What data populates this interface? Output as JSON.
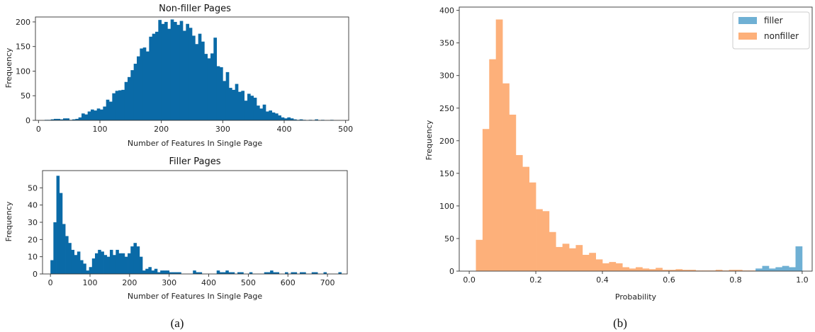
{
  "charts": {
    "a_top": {
      "type": "bar",
      "title": "Non-filler Pages",
      "xlabel": "Number of Features In Single Page",
      "ylabel": "Frequency",
      "xlim": [
        -5,
        505
      ],
      "ylim": [
        0,
        210
      ],
      "xticks": [
        0,
        100,
        200,
        300,
        400,
        500
      ],
      "yticks": [
        0,
        50,
        100,
        150,
        200
      ],
      "bin_start": 10,
      "bin_width": 5,
      "color": "#0a6aa7",
      "values": [
        1,
        1,
        2,
        3,
        3,
        2,
        4,
        4,
        1,
        2,
        3,
        6,
        14,
        12,
        18,
        22,
        20,
        24,
        22,
        28,
        42,
        38,
        55,
        60,
        61,
        62,
        78,
        88,
        102,
        115,
        130,
        146,
        148,
        140,
        170,
        176,
        180,
        204,
        196,
        200,
        186,
        205,
        200,
        194,
        202,
        182,
        196,
        188,
        172,
        155,
        176,
        160,
        135,
        126,
        136,
        168,
        110,
        108,
        80,
        98,
        66,
        62,
        74,
        58,
        60,
        40,
        54,
        50,
        46,
        30,
        24,
        32,
        18,
        20,
        16,
        14,
        10,
        6,
        4,
        6,
        4,
        2,
        1,
        2,
        1,
        0,
        1,
        0,
        2,
        0,
        1,
        0,
        0,
        1,
        0,
        0,
        0,
        0
      ]
    },
    "a_bottom": {
      "type": "bar",
      "title": "Filler Pages",
      "xlabel": "Number of Features In Single Page",
      "ylabel": "Frequency",
      "xlim": [
        -20,
        750
      ],
      "ylim": [
        0,
        60
      ],
      "xticks": [
        0,
        100,
        200,
        300,
        400,
        500,
        600,
        700
      ],
      "yticks": [
        0,
        10,
        20,
        30,
        40,
        50
      ],
      "bin_start": 0,
      "bin_width": 7.5,
      "color": "#0a6aa7",
      "values": [
        8,
        30,
        57,
        47,
        29,
        22,
        18,
        14,
        11,
        13,
        8,
        6,
        2,
        4,
        9,
        12,
        14,
        13,
        11,
        10,
        14,
        11,
        14,
        12,
        12,
        10,
        12,
        16,
        18,
        16,
        10,
        2,
        3,
        4,
        2,
        3,
        1,
        2,
        2,
        2,
        1,
        1,
        1,
        1,
        0,
        0,
        0,
        0,
        2,
        1,
        1,
        0,
        0,
        0,
        0,
        0,
        2,
        1,
        1,
        2,
        1,
        1,
        0,
        1,
        1,
        0,
        0,
        1,
        0,
        0,
        0,
        0,
        1,
        1,
        2,
        1,
        1,
        0,
        0,
        1,
        0,
        1,
        1,
        0,
        1,
        1,
        0,
        0,
        1,
        1,
        0,
        0,
        1,
        0,
        0,
        0,
        0,
        1
      ]
    },
    "b": {
      "type": "bar",
      "xlabel": "Probability",
      "ylabel": "Frequency",
      "xlim": [
        -0.03,
        1.03
      ],
      "ylim": [
        0,
        405
      ],
      "xticks": [
        "0.0",
        "0.2",
        "0.4",
        "0.6",
        "0.8",
        "1.0"
      ],
      "yticks": [
        0,
        50,
        100,
        150,
        200,
        250,
        300,
        350,
        400
      ],
      "bin_start": 0.02,
      "bin_width": 0.02,
      "series": [
        {
          "name": "nonfiller",
          "color": "#fdb07a",
          "values": [
            48,
            218,
            325,
            386,
            288,
            240,
            178,
            160,
            136,
            95,
            92,
            60,
            37,
            42,
            35,
            40,
            25,
            28,
            18,
            12,
            14,
            12,
            6,
            4,
            6,
            4,
            3,
            5,
            2,
            2,
            3,
            2,
            2,
            1,
            1,
            1,
            2,
            1,
            2,
            2,
            1,
            1,
            1,
            2,
            1,
            2,
            0,
            2,
            0
          ]
        },
        {
          "name": "filler",
          "color": "#6fb0d4",
          "values": [
            0,
            0,
            0,
            0,
            0,
            0,
            0,
            0,
            0,
            0,
            0,
            0,
            0,
            0,
            0,
            0,
            0,
            0,
            0,
            0,
            0,
            0,
            0,
            0,
            0,
            0,
            0,
            0,
            0,
            0,
            0,
            0,
            0,
            0,
            0,
            0,
            0,
            0,
            0,
            0,
            0,
            0,
            4,
            8,
            4,
            6,
            8,
            6,
            38
          ]
        }
      ]
    }
  },
  "captions": {
    "a": "(a)",
    "b": "(b)"
  }
}
